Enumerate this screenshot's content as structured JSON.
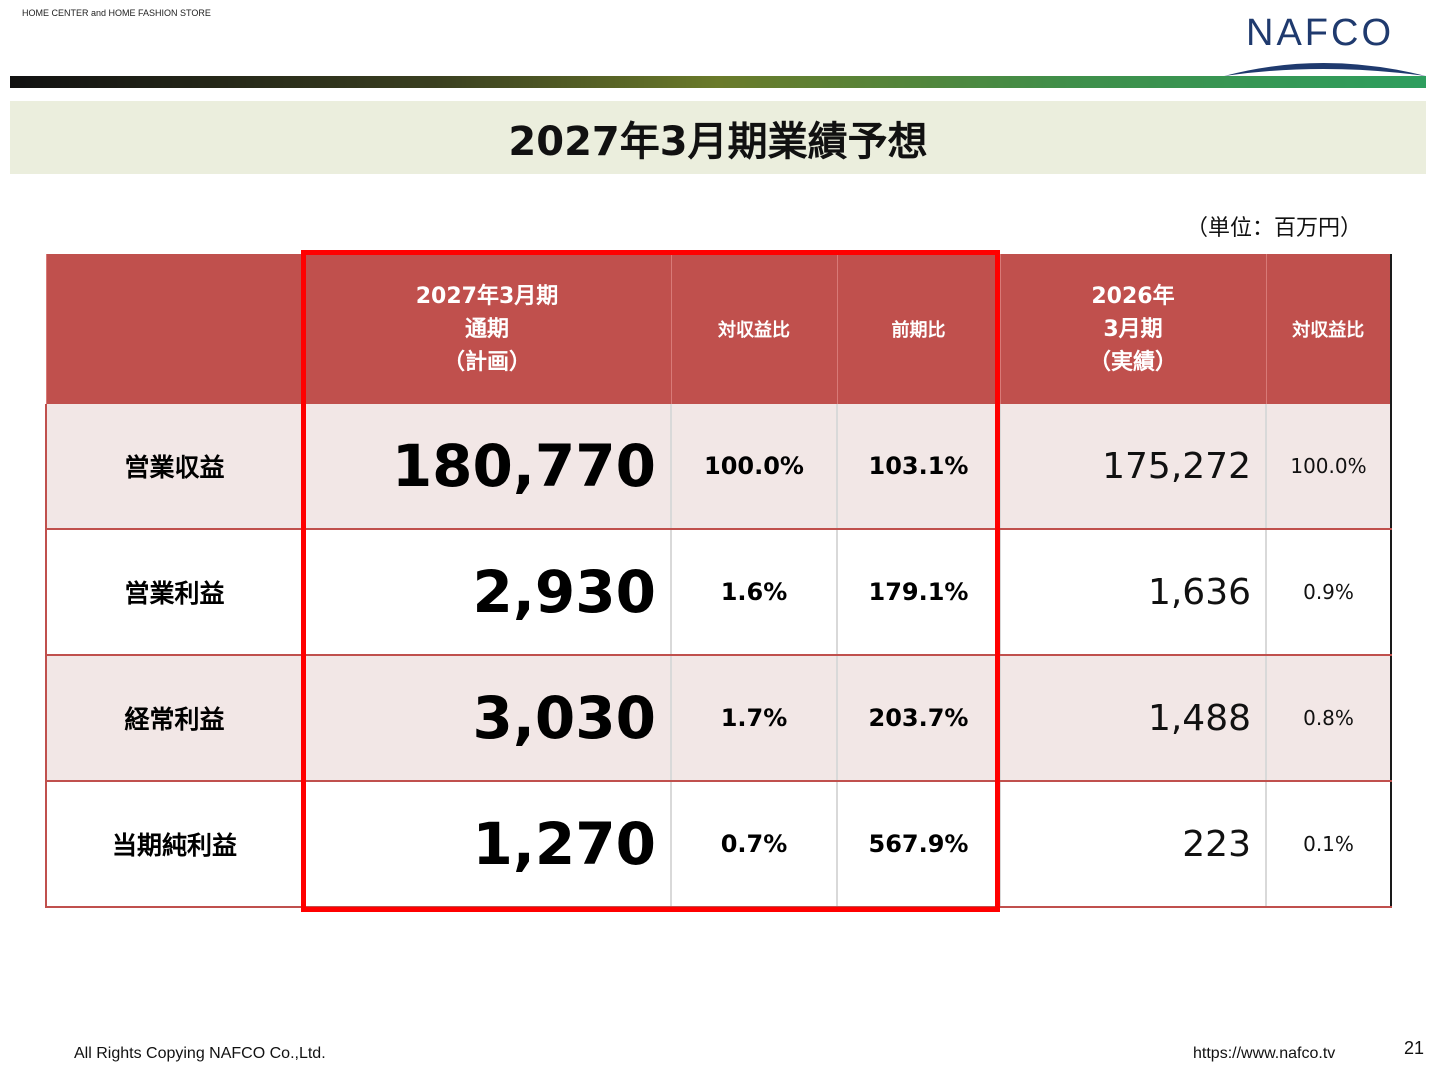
{
  "header": {
    "tagline": "HOME CENTER and HOME FASHION STORE",
    "logo_text": "NAFCO"
  },
  "title": "2027年3月期業績予想",
  "unit_note": "（単位：百万円）",
  "table": {
    "columns": {
      "plan": [
        "2027年3月期",
        "通期",
        "（計画）"
      ],
      "plan_ratio": "対収益比",
      "yoy": "前期比",
      "actual": [
        "2026年",
        "3月期",
        "（実績）"
      ],
      "actual_ratio": "対収益比"
    },
    "rows": [
      {
        "label": "営業収益",
        "plan": "180,770",
        "plan_ratio": "100.0%",
        "yoy": "103.1%",
        "actual": "175,272",
        "actual_ratio": "100.0%"
      },
      {
        "label": "営業利益",
        "plan": "2,930",
        "plan_ratio": "1.6%",
        "yoy": "179.1%",
        "actual": "1,636",
        "actual_ratio": "0.9%"
      },
      {
        "label": "経常利益",
        "plan": "3,030",
        "plan_ratio": "1.7%",
        "yoy": "203.7%",
        "actual": "1,488",
        "actual_ratio": "0.8%"
      },
      {
        "label": "当期純利益",
        "plan": "1,270",
        "plan_ratio": "0.7%",
        "yoy": "567.9%",
        "actual": "223",
        "actual_ratio": "0.1%"
      }
    ]
  },
  "footer": {
    "copyright": "All Rights Copying NAFCO Co.,Ltd.",
    "url": "https://www.nafco.tv",
    "page_number": "21"
  },
  "colors": {
    "header_red": "#c0504d",
    "highlight_box": "#ff0000",
    "title_band": "#ebeedd",
    "logo_blue": "#1f3a6e"
  }
}
